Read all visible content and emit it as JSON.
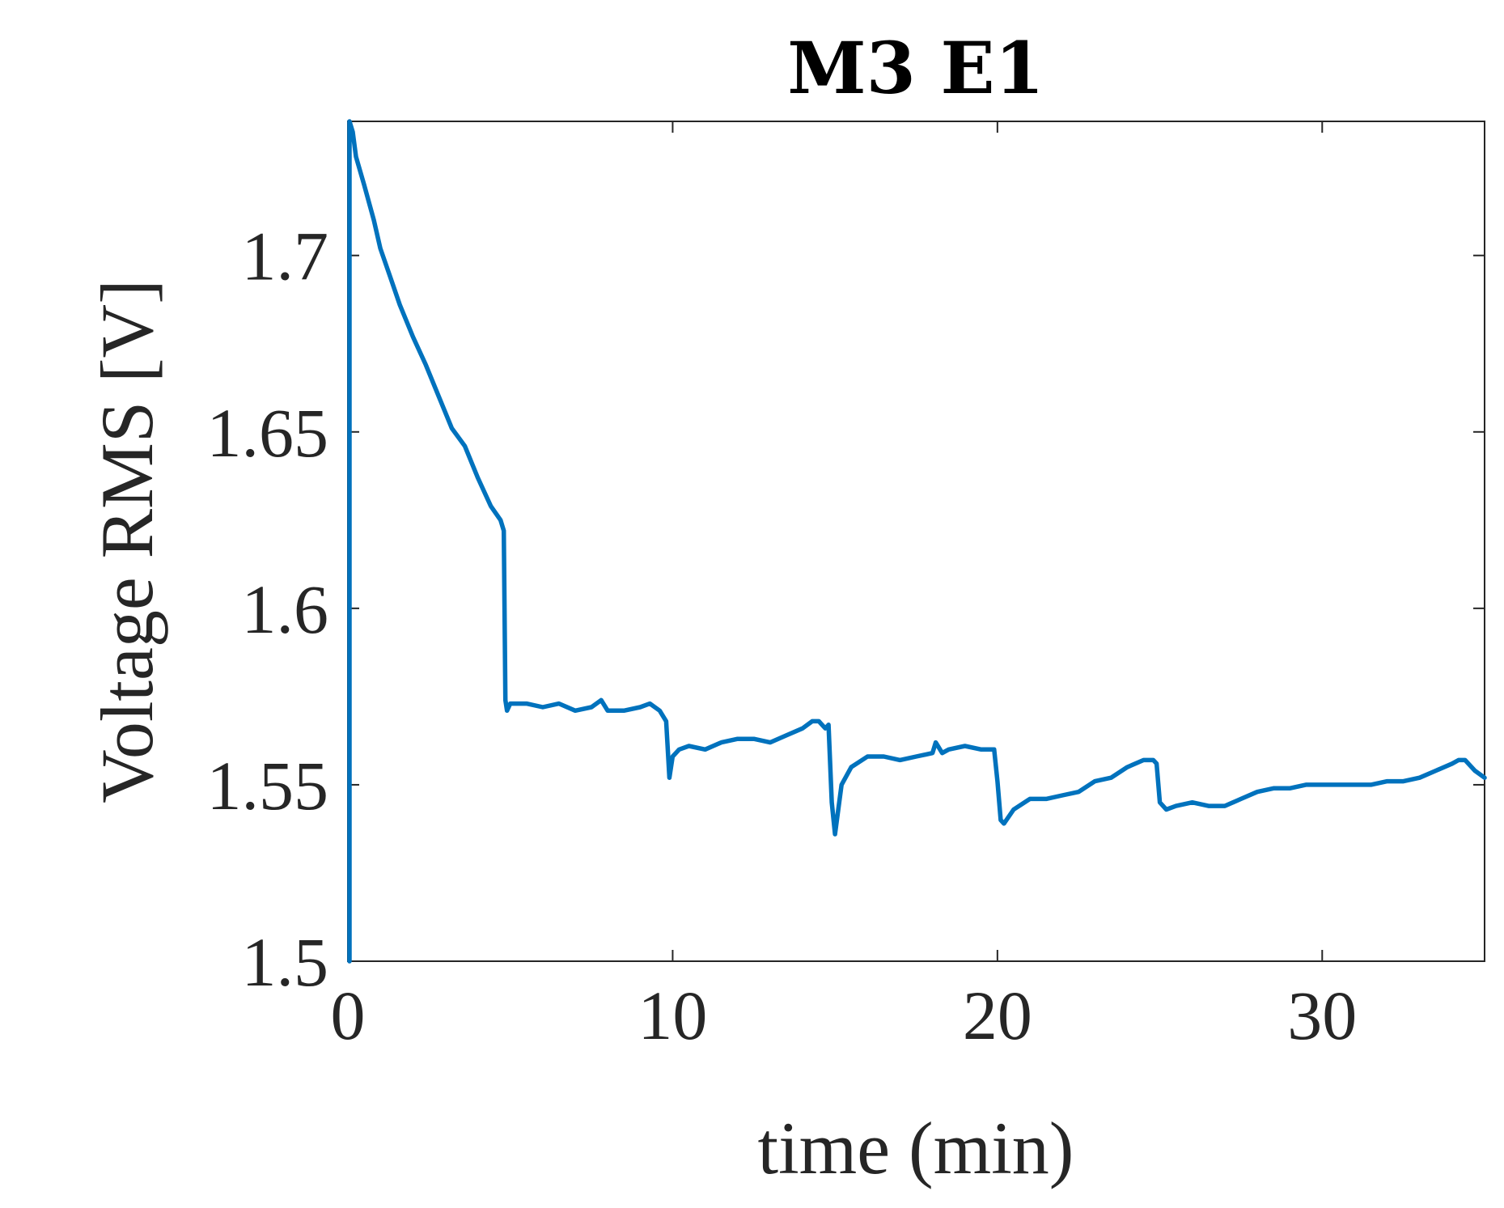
{
  "chart_data": {
    "type": "line",
    "title": "M3 E1",
    "xlabel": "time (min)",
    "ylabel": "Voltage RMS [V]",
    "xlim": [
      0,
      35
    ],
    "ylim": [
      1.5,
      1.738
    ],
    "xticks": [
      0,
      10,
      20,
      30
    ],
    "xtick_labels": [
      "0",
      "10",
      "20",
      "30"
    ],
    "yticks": [
      1.5,
      1.55,
      1.6,
      1.65,
      1.7
    ],
    "ytick_labels": [
      "1.5",
      "1.55",
      "1.6",
      "1.65",
      "1.7"
    ],
    "grid": false,
    "legend": "none",
    "series": [
      {
        "color": "#0072BD",
        "x": [
          0.05,
          0.05,
          0.15,
          0.25,
          0.5,
          0.8,
          1.0,
          1.3,
          1.6,
          2.0,
          2.4,
          2.8,
          3.2,
          3.6,
          4.0,
          4.4,
          4.7,
          4.8,
          4.85,
          4.9,
          5.0,
          5.5,
          6.0,
          6.5,
          7.0,
          7.5,
          7.8,
          8.0,
          8.5,
          9.0,
          9.3,
          9.6,
          9.8,
          9.9,
          10.0,
          10.2,
          10.5,
          11.0,
          11.5,
          12.0,
          12.5,
          13.0,
          13.5,
          14.0,
          14.3,
          14.5,
          14.7,
          14.8,
          14.9,
          15.0,
          15.2,
          15.5,
          16.0,
          16.5,
          17.0,
          17.5,
          18.0,
          18.1,
          18.3,
          18.5,
          19.0,
          19.5,
          19.9,
          20.0,
          20.1,
          20.2,
          20.5,
          21.0,
          21.5,
          22.0,
          22.5,
          23.0,
          23.5,
          24.0,
          24.5,
          24.8,
          24.9,
          25.0,
          25.2,
          25.5,
          26.0,
          26.5,
          27.0,
          27.5,
          28.0,
          28.5,
          29.0,
          29.5,
          30.0,
          30.5,
          31.0,
          31.5,
          32.0,
          32.5,
          33.0,
          33.5,
          34.0,
          34.2,
          34.4,
          34.7,
          35.0
        ],
        "y": [
          1.5,
          1.738,
          1.735,
          1.728,
          1.72,
          1.71,
          1.702,
          1.694,
          1.686,
          1.677,
          1.669,
          1.66,
          1.651,
          1.646,
          1.637,
          1.629,
          1.625,
          1.622,
          1.574,
          1.571,
          1.573,
          1.573,
          1.572,
          1.573,
          1.571,
          1.572,
          1.574,
          1.571,
          1.571,
          1.572,
          1.573,
          1.571,
          1.568,
          1.552,
          1.558,
          1.56,
          1.561,
          1.56,
          1.562,
          1.563,
          1.563,
          1.562,
          1.564,
          1.566,
          1.568,
          1.568,
          1.566,
          1.567,
          1.545,
          1.536,
          1.55,
          1.555,
          1.558,
          1.558,
          1.557,
          1.558,
          1.559,
          1.562,
          1.559,
          1.56,
          1.561,
          1.56,
          1.56,
          1.551,
          1.54,
          1.539,
          1.543,
          1.546,
          1.546,
          1.547,
          1.548,
          1.551,
          1.552,
          1.555,
          1.557,
          1.557,
          1.556,
          1.545,
          1.543,
          1.544,
          1.545,
          1.544,
          1.544,
          1.546,
          1.548,
          1.549,
          1.549,
          1.55,
          1.55,
          1.55,
          1.55,
          1.55,
          1.551,
          1.551,
          1.552,
          1.554,
          1.556,
          1.557,
          1.557,
          1.554,
          1.552
        ]
      }
    ]
  }
}
